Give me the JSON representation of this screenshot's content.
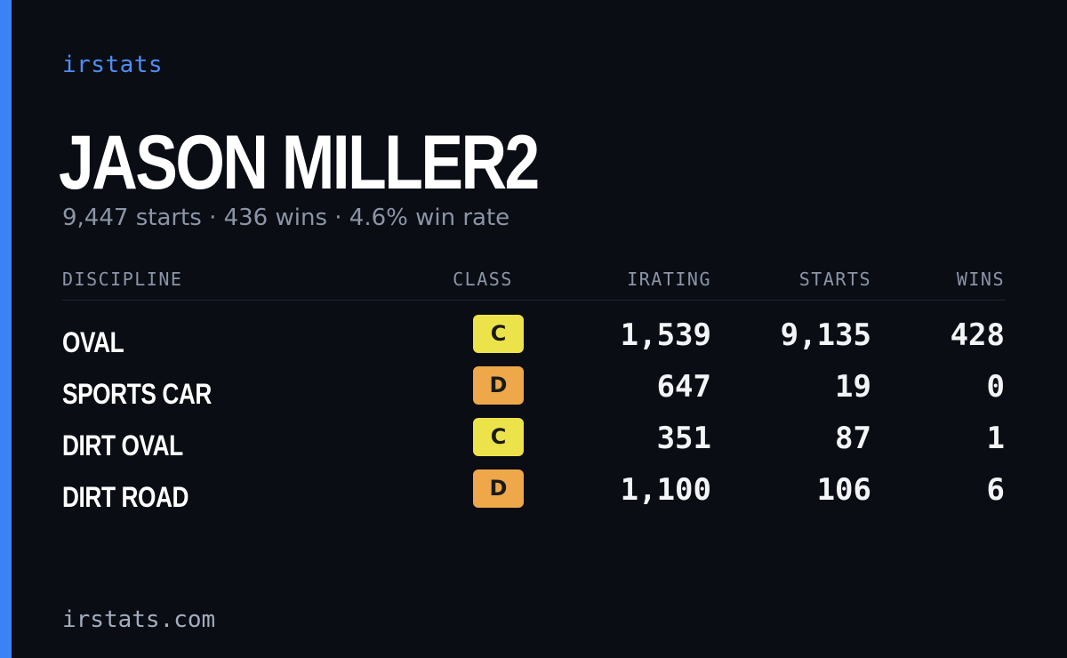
{
  "brand": "irstats",
  "driver": {
    "name": "JASON MILLER2",
    "summary": "9,447 starts · 436 wins · 4.6% win rate"
  },
  "table": {
    "headers": {
      "discipline": "DISCIPLINE",
      "class": "CLASS",
      "irating": "IRATING",
      "starts": "STARTS",
      "wins": "WINS"
    },
    "rows": [
      {
        "discipline": "OVAL",
        "class": "C",
        "class_color": "#ece34a",
        "irating": "1,539",
        "starts": "9,135",
        "wins": "428"
      },
      {
        "discipline": "SPORTS CAR",
        "class": "D",
        "class_color": "#eea84a",
        "irating": "647",
        "starts": "19",
        "wins": "0"
      },
      {
        "discipline": "DIRT OVAL",
        "class": "C",
        "class_color": "#ece34a",
        "irating": "351",
        "starts": "87",
        "wins": "1"
      },
      {
        "discipline": "DIRT ROAD",
        "class": "D",
        "class_color": "#eea84a",
        "irating": "1,100",
        "starts": "106",
        "wins": "6"
      }
    ]
  },
  "footer": "irstats.com",
  "colors": {
    "background": "#0a0d14",
    "accent": "#3b82f6",
    "brand_text": "#4f8ef7",
    "muted_text": "#8b95a7"
  }
}
